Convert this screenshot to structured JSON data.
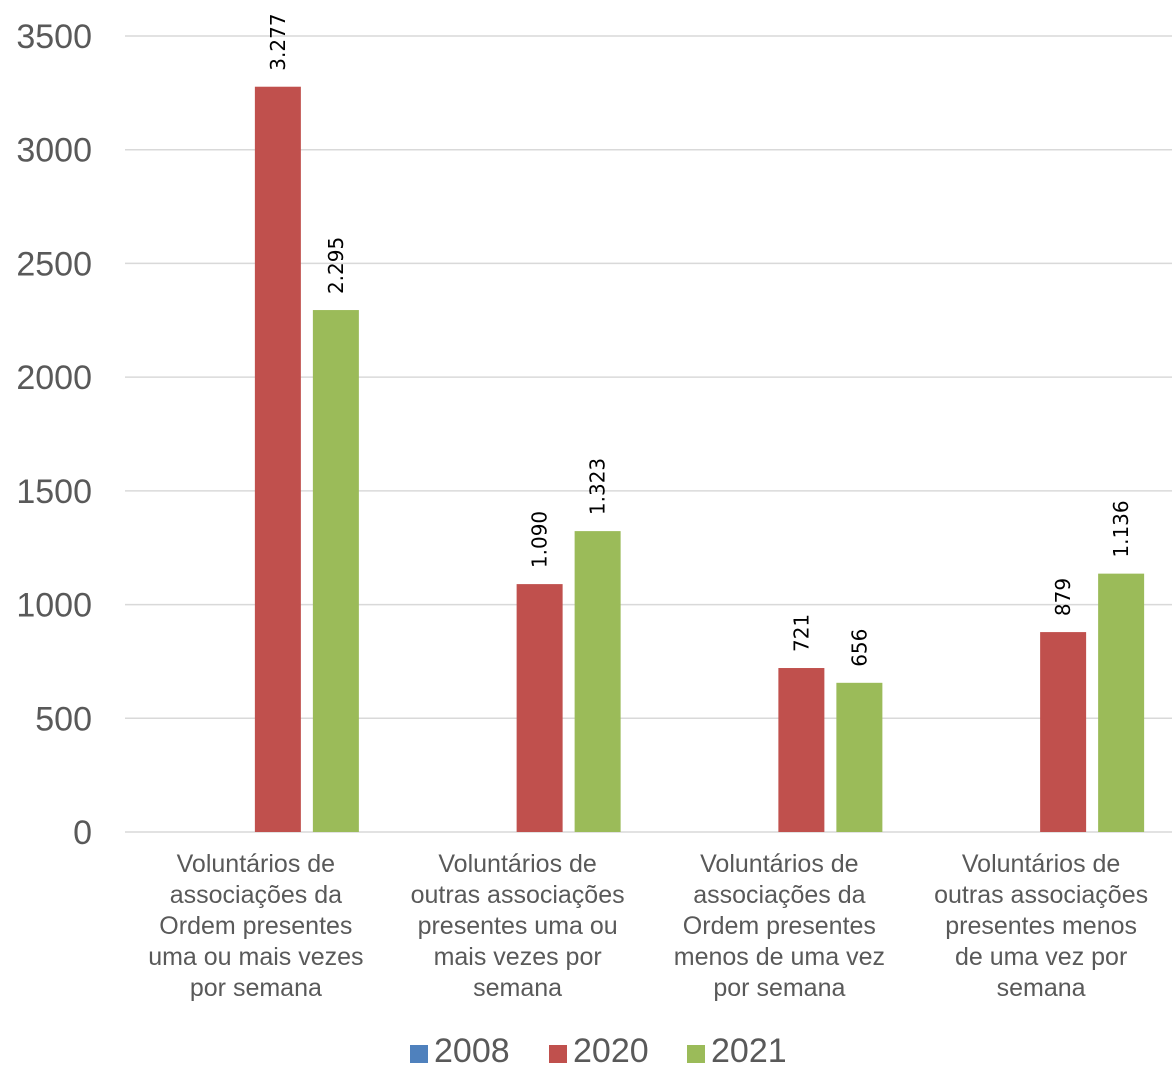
{
  "chart_data": {
    "type": "bar",
    "categories": [
      [
        "Voluntários de",
        "associações da",
        "Ordem presentes",
        "uma ou mais vezes",
        "por semana"
      ],
      [
        "Voluntários de",
        "outras associações",
        "presentes uma ou",
        "mais vezes por",
        "semana"
      ],
      [
        "Voluntários de",
        "associações da",
        "Ordem presentes",
        "menos de uma vez",
        "por semana"
      ],
      [
        "Voluntários de",
        "outras associações",
        "presentes menos",
        "de uma vez por",
        "semana"
      ]
    ],
    "series": [
      {
        "name": "2008",
        "color": "#4f81bd",
        "values": [
          null,
          null,
          null,
          null
        ],
        "labels": [
          "",
          "",
          "",
          ""
        ]
      },
      {
        "name": "2020",
        "color": "#c0504d",
        "values": [
          3277,
          1090,
          721,
          879
        ],
        "labels": [
          "3.277",
          "1.090",
          "721",
          "879"
        ]
      },
      {
        "name": "2021",
        "color": "#9bbb59",
        "values": [
          2295,
          1323,
          656,
          1136
        ],
        "labels": [
          "2.295",
          "1.323",
          "656",
          "1.136"
        ]
      }
    ],
    "yticks": [
      "0",
      "500",
      "1000",
      "1500",
      "2000",
      "2500",
      "3000",
      "3500"
    ],
    "ylim": [
      0,
      3500
    ],
    "grid": true,
    "legend": "bottom",
    "title": "",
    "xlabel": "",
    "ylabel": ""
  }
}
